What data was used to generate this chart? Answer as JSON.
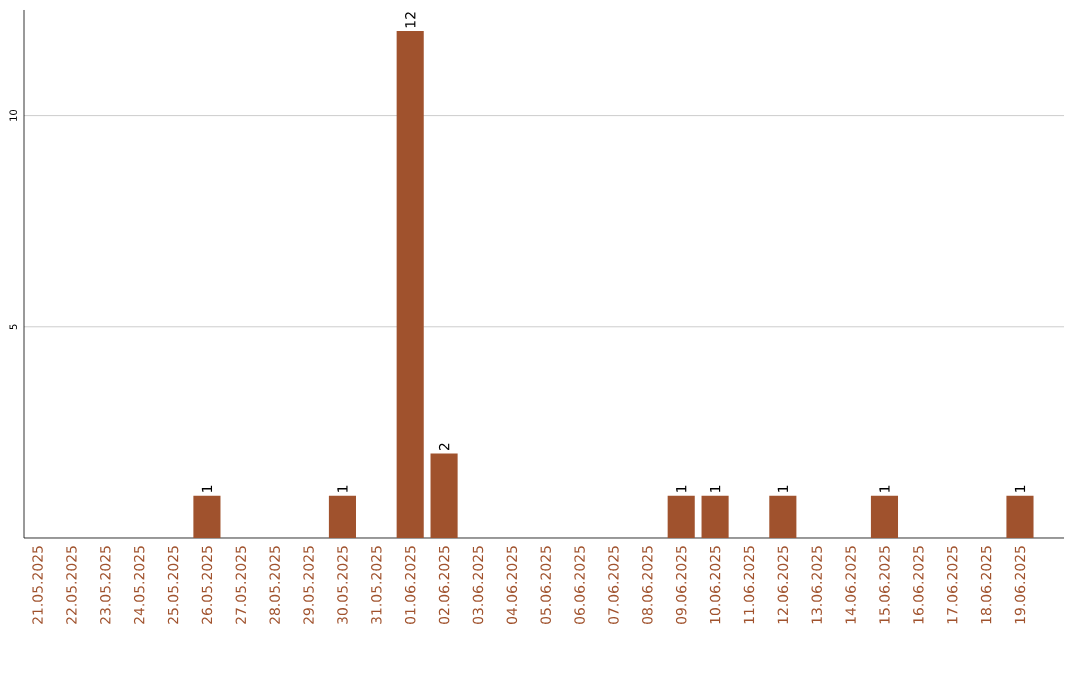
{
  "chart_data": {
    "type": "bar",
    "categories": [
      "21.05.2025",
      "22.05.2025",
      "23.05.2025",
      "24.05.2025",
      "25.05.2025",
      "26.05.2025",
      "27.05.2025",
      "28.05.2025",
      "29.05.2025",
      "30.05.2025",
      "31.05.2025",
      "01.06.2025",
      "02.06.2025",
      "03.06.2025",
      "04.06.2025",
      "05.06.2025",
      "06.06.2025",
      "07.06.2025",
      "08.06.2025",
      "09.06.2025",
      "10.06.2025",
      "11.06.2025",
      "12.06.2025",
      "13.06.2025",
      "14.06.2025",
      "15.06.2025",
      "16.06.2025",
      "17.06.2025",
      "18.06.2025",
      "19.06.2025"
    ],
    "values": [
      0,
      0,
      0,
      0,
      0,
      1,
      0,
      0,
      0,
      1,
      0,
      12,
      2,
      0,
      0,
      0,
      0,
      0,
      0,
      1,
      1,
      0,
      1,
      0,
      0,
      1,
      0,
      0,
      0,
      1
    ],
    "value_labels": [
      null,
      null,
      null,
      null,
      null,
      "1",
      null,
      null,
      null,
      "1",
      null,
      "12",
      "2",
      null,
      null,
      null,
      null,
      null,
      null,
      "1",
      "1",
      null,
      "1",
      null,
      null,
      "1",
      null,
      null,
      null,
      "1"
    ],
    "color": "#a0522d",
    "ylim": [
      0,
      12.5
    ],
    "yticks": [
      5,
      10
    ],
    "grid": "y"
  }
}
